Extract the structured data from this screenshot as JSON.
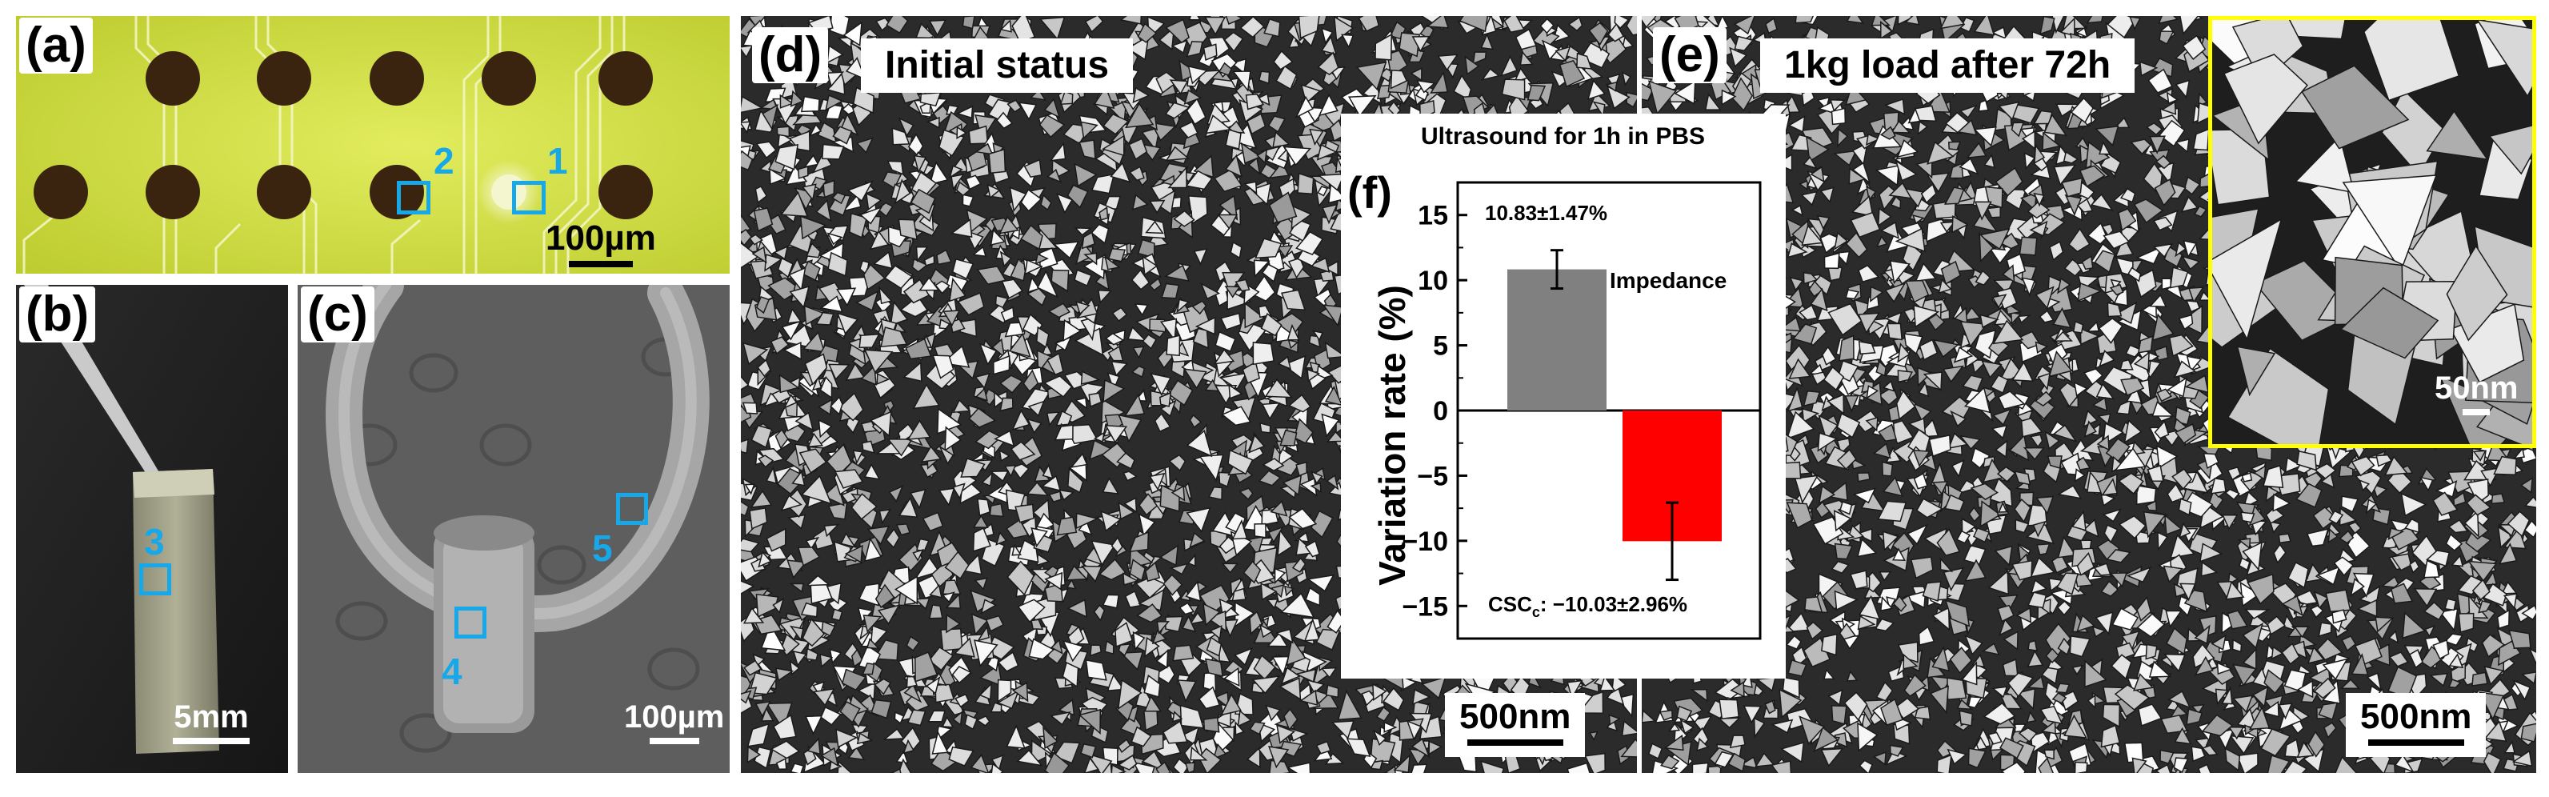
{
  "panels": {
    "a": {
      "label": "(a)",
      "scale": "100µm",
      "regions": [
        "1",
        "2"
      ]
    },
    "b": {
      "label": "(b)",
      "scale": "5mm",
      "regions": [
        "3"
      ]
    },
    "c": {
      "label": "(c)",
      "scale": "100µm",
      "regions": [
        "4",
        "5"
      ]
    },
    "d": {
      "label": "(d)",
      "title": "Initial status",
      "scale": "500nm"
    },
    "e": {
      "label": "(e)",
      "title": "1kg load after 72h",
      "scale": "500nm",
      "inset_scale": "50nm"
    }
  },
  "colors": {
    "region_marker": "#16a8e8",
    "impedance_bar": "#808080",
    "csc_bar": "#ff0000",
    "inset_border": "#ffff00"
  },
  "chart_data": {
    "type": "bar",
    "panel_label": "(f)",
    "title": "Ultrasound for 1h in PBS",
    "categories": [
      "Impedance",
      "CSC"
    ],
    "values": [
      10.83,
      -10.03
    ],
    "errors": [
      1.47,
      2.96
    ],
    "data_labels": [
      "10.83±1.47%",
      ": −10.03±2.96%"
    ],
    "csc_label_main": "CSC",
    "csc_label_sub": "c",
    "ylabel": "Variation rate (%)",
    "xlabel": "",
    "ylim": [
      -17.5,
      17.5
    ],
    "yticks": [
      15,
      10,
      5,
      0,
      -5,
      -10,
      -15
    ],
    "zero_line": true
  }
}
